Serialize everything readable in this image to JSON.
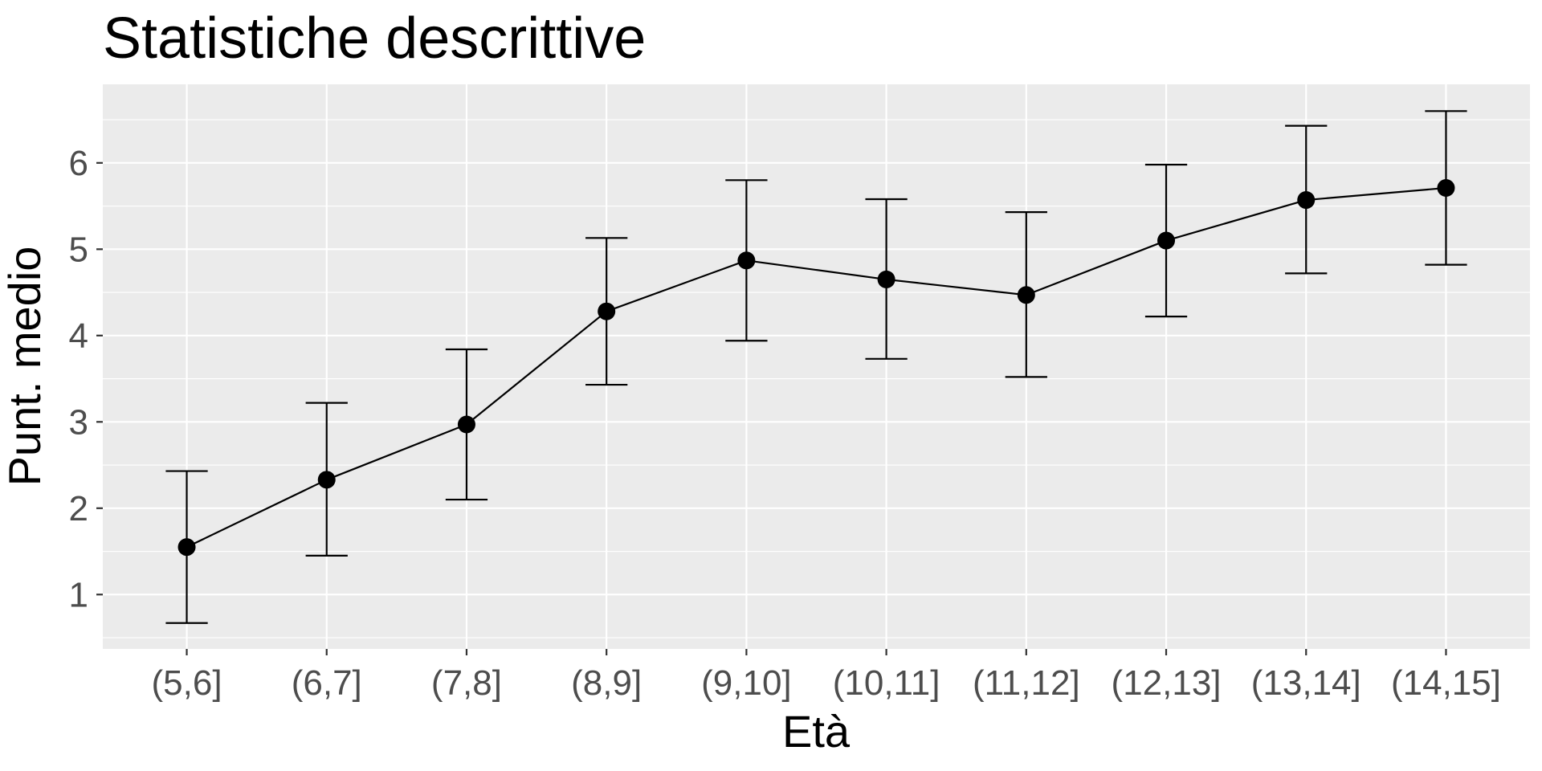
{
  "chart_data": {
    "type": "line",
    "title": "Statistiche descrittive",
    "xlabel": "Età",
    "ylabel": "Punt. medio",
    "categories": [
      "(5,6]",
      "(6,7]",
      "(7,8]",
      "(8,9]",
      "(9,10]",
      "(10,11]",
      "(11,12]",
      "(12,13]",
      "(13,14]",
      "(14,15]"
    ],
    "series": [
      {
        "values": [
          1.55,
          2.33,
          2.97,
          4.28,
          4.87,
          4.65,
          4.47,
          5.1,
          5.57,
          5.71
        ],
        "error_low": [
          0.67,
          1.45,
          2.1,
          3.43,
          3.94,
          3.73,
          3.52,
          4.22,
          4.72,
          4.82
        ],
        "error_high": [
          2.43,
          3.22,
          3.84,
          5.13,
          5.8,
          5.58,
          5.43,
          5.98,
          6.43,
          6.6
        ]
      }
    ],
    "yticks": [
      1,
      2,
      3,
      4,
      5,
      6
    ],
    "ylim": [
      0.37,
      6.91
    ],
    "grid": true,
    "legend": "none",
    "colors": {
      "panel_background": "#ebebeb",
      "grid": "#ffffff",
      "line": "#000000",
      "tick_text": "#4d4d4d"
    }
  }
}
